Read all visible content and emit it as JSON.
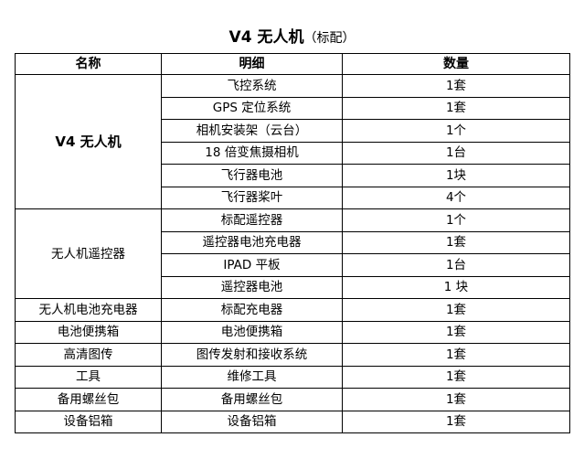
{
  "title": {
    "main": "V4 无人机",
    "sub": "（标配）"
  },
  "headers": [
    "名称",
    "明细",
    "数量"
  ],
  "groups": [
    {
      "name": "V4 无人机",
      "items": [
        {
          "detail": "飞控系统",
          "qty": "1套"
        },
        {
          "detail": "GPS 定位系统",
          "qty": "1套"
        },
        {
          "detail": "相机安装架（云台）",
          "qty": "1个"
        },
        {
          "detail": "18 倍变焦摄相机",
          "qty": "1台"
        },
        {
          "detail": "飞行器电池",
          "qty": "1块"
        },
        {
          "detail": "飞行器桨叶",
          "qty": "4个"
        }
      ]
    },
    {
      "name": "无人机遥控器",
      "items": [
        {
          "detail": "标配遥控器",
          "qty": "1个"
        },
        {
          "detail": "遥控器电池充电器",
          "qty": "1套"
        },
        {
          "detail": "IPAD 平板",
          "qty": "1台"
        },
        {
          "detail": "遥控器电池",
          "qty": "1 块"
        }
      ]
    },
    {
      "name": "无人机电池充电器",
      "items": [
        {
          "detail": "标配充电器",
          "qty": "1套"
        }
      ]
    },
    {
      "name": "电池便携箱",
      "items": [
        {
          "detail": "电池便携箱",
          "qty": "1套"
        }
      ]
    },
    {
      "name": "高清图传",
      "items": [
        {
          "detail": "图传发射和接收系统",
          "qty": "1套"
        }
      ]
    },
    {
      "name": "工具",
      "items": [
        {
          "detail": "维修工具",
          "qty": "1套"
        }
      ]
    },
    {
      "name": "备用螺丝包",
      "items": [
        {
          "detail": "备用螺丝包",
          "qty": "1套"
        }
      ]
    },
    {
      "name": "设备铝箱",
      "items": [
        {
          "detail": "设备铝箱",
          "qty": "1套"
        }
      ]
    }
  ]
}
